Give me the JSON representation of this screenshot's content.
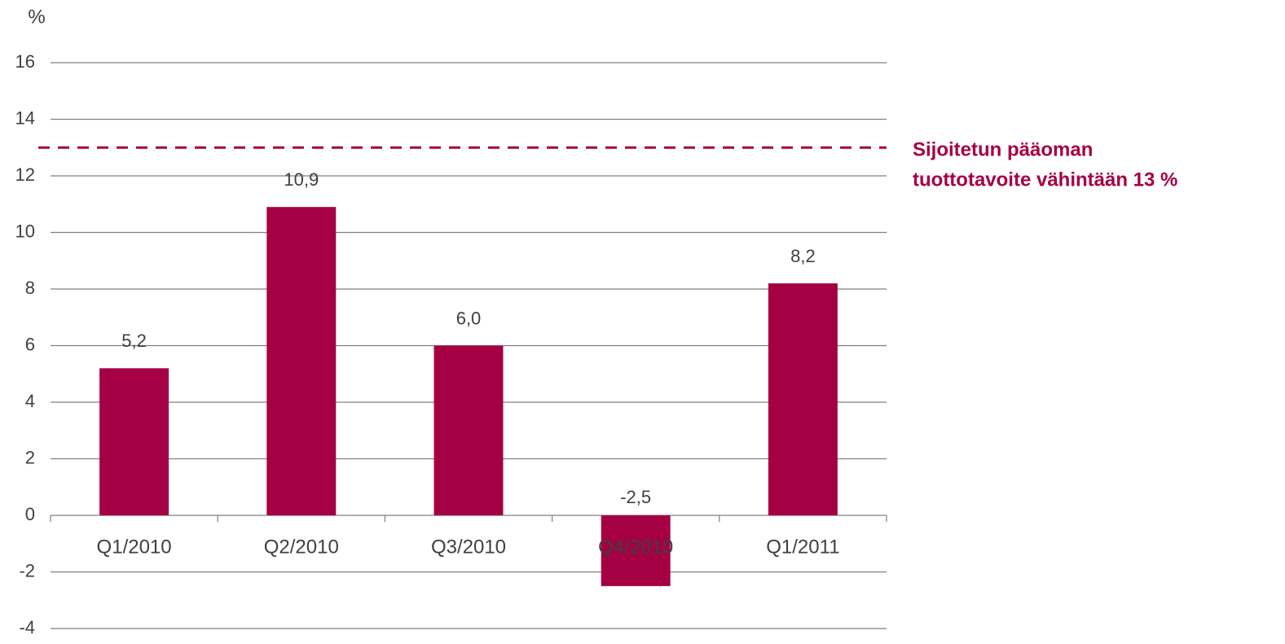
{
  "chart_data": {
    "type": "bar",
    "y_axis_label": "%",
    "categories": [
      "Q1/2010",
      "Q2/2010",
      "Q3/2010",
      "Q4/2010",
      "Q1/2011"
    ],
    "values": [
      5.2,
      10.9,
      6.0,
      -2.5,
      8.2
    ],
    "value_labels": [
      "5,2",
      "10,9",
      "6,0",
      "-2,5",
      "8,2"
    ],
    "color": "#a50044",
    "ylim": [
      -4,
      16
    ],
    "yticks": [
      -4,
      -2,
      0,
      2,
      4,
      6,
      8,
      10,
      12,
      14,
      16
    ],
    "grid": true,
    "reference_line": {
      "value": 13,
      "style": "dashed",
      "color": "#a50044",
      "label_lines": [
        "Sijoitetun pääoman",
        "tuottotavoite vähintään 13 %"
      ]
    }
  }
}
